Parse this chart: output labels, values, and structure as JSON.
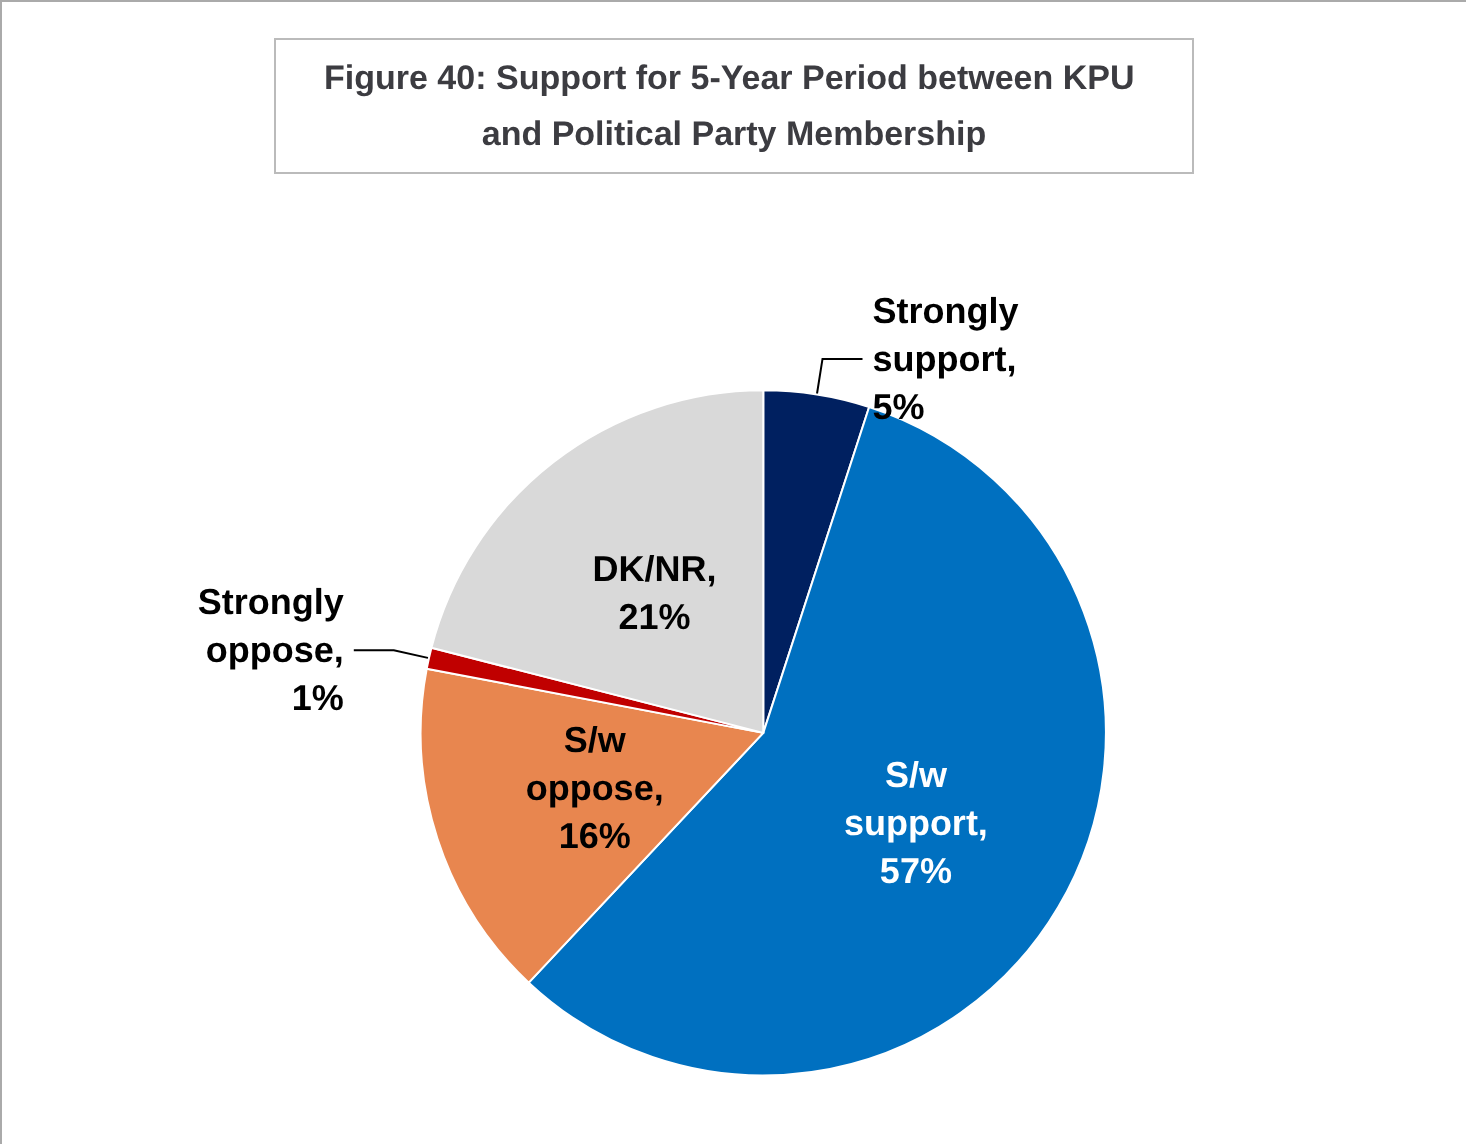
{
  "chart_data": {
    "type": "pie",
    "title": "Figure 40: Support for 5-Year Period between KPU and Political Party Membership",
    "categories": [
      "Strongly support",
      "S/w support",
      "S/w oppose",
      "Strongly oppose",
      "DK/NR"
    ],
    "values": [
      5,
      57,
      16,
      1,
      21
    ],
    "value_labels": [
      ", 5%",
      ", 57%",
      ", 16%",
      ", 1%",
      ", 21%"
    ],
    "colors": [
      "#002060",
      "#0070c0",
      "#e8864f",
      "#c00000",
      "#d9d9d9"
    ],
    "legend": false
  }
}
